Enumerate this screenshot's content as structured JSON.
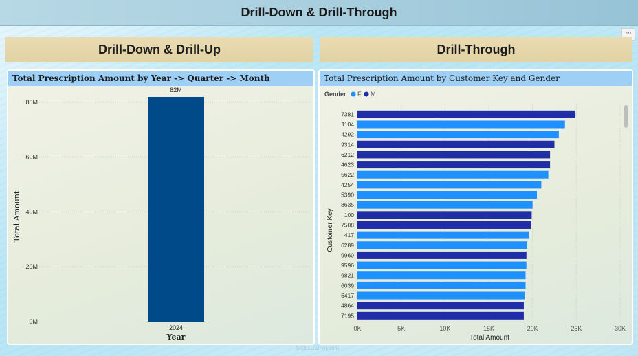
{
  "header": {
    "title": "Drill-Down & Drill-Through",
    "more_label": "···"
  },
  "sections": {
    "left": "Drill-Down & Drill-Up",
    "right": "Drill-Through"
  },
  "left_chart": {
    "title": "Total Prescription Amount by Year -> Quarter -> Month",
    "chart_data": {
      "type": "bar",
      "title": "Total Prescription Amount by Year -> Quarter -> Month",
      "categories": [
        "2024"
      ],
      "values": [
        82
      ],
      "value_unit": "M",
      "data_labels": [
        "82M"
      ],
      "xlabel": "Year",
      "ylabel": "Total Amount",
      "yticks": [
        "0M",
        "20M",
        "40M",
        "60M",
        "80M"
      ],
      "ylim": [
        0,
        84
      ],
      "bar_color": "#004a8a",
      "grid": true
    }
  },
  "right_chart": {
    "title": "Total Prescription Amount by Customer Key and Gender",
    "legend": {
      "title": "Gender",
      "items": [
        {
          "label": "F",
          "color": "#1e90ff"
        },
        {
          "label": "M",
          "color": "#1f2ea8"
        }
      ]
    },
    "chart_data": {
      "type": "bar",
      "orientation": "horizontal",
      "title": "Total Prescription Amount by Customer Key and Gender",
      "xlabel": "Total Amount",
      "ylabel": "Customer Key",
      "xticks": [
        "0K",
        "5K",
        "10K",
        "15K",
        "20K",
        "25K",
        "30K"
      ],
      "xlim": [
        0,
        30000
      ],
      "legend_title": "Gender",
      "legend_placement": "top-left",
      "categories": [
        "7381",
        "1104",
        "4292",
        "9314",
        "6212",
        "4623",
        "5622",
        "4254",
        "5390",
        "8635",
        "100",
        "7508",
        "417",
        "6289",
        "9960",
        "9596",
        "6821",
        "6039",
        "6417",
        "4864",
        "7195"
      ],
      "values": [
        24900,
        23700,
        23000,
        22500,
        22000,
        22000,
        21800,
        21000,
        20500,
        20000,
        19900,
        19800,
        19600,
        19400,
        19300,
        19300,
        19200,
        19200,
        19100,
        19000,
        19000
      ],
      "gender": [
        "M",
        "F",
        "F",
        "M",
        "M",
        "M",
        "F",
        "F",
        "F",
        "F",
        "M",
        "M",
        "F",
        "F",
        "M",
        "F",
        "F",
        "F",
        "F",
        "M",
        "M"
      ],
      "grid": true
    }
  },
  "watermark": "SlidesGamer.com"
}
